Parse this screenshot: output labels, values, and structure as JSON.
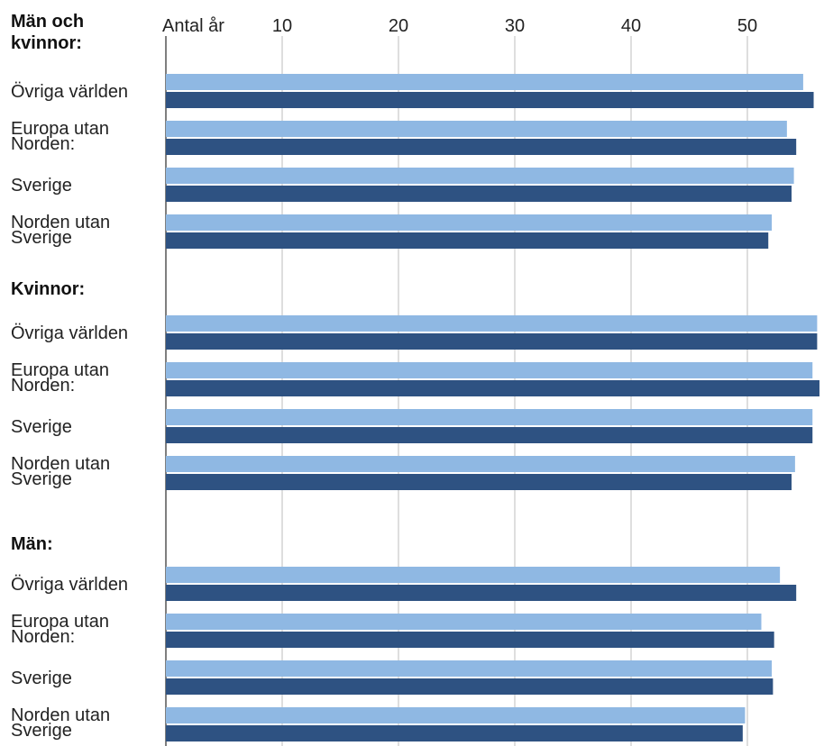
{
  "chart_data": {
    "type": "bar",
    "orientation": "horizontal",
    "unit_label": "Antal år",
    "xlim": [
      0,
      56
    ],
    "ticks": [
      10,
      20,
      30,
      40,
      50
    ],
    "grid": true,
    "colors": {
      "light": "#8fb8e3",
      "dark": "#2e5282"
    },
    "groups": [
      {
        "title": [
          "Män och",
          "kvinnor:"
        ],
        "rows": [
          {
            "label": [
              "Övriga världen"
            ],
            "values": [
              54.8,
              55.7
            ]
          },
          {
            "label": [
              "Europa utan",
              "Norden:"
            ],
            "values": [
              53.4,
              54.2
            ]
          },
          {
            "label": [
              "Sverige"
            ],
            "values": [
              54.0,
              53.8
            ]
          },
          {
            "label": [
              "Norden utan",
              "Sverige"
            ],
            "values": [
              52.1,
              51.8
            ]
          }
        ]
      },
      {
        "title": [
          "Kvinnor:"
        ],
        "rows": [
          {
            "label": [
              "Övriga världen"
            ],
            "values": [
              56.0,
              56.0
            ]
          },
          {
            "label": [
              "Europa utan",
              "Norden:"
            ],
            "values": [
              55.6,
              56.2
            ]
          },
          {
            "label": [
              "Sverige"
            ],
            "values": [
              55.6,
              55.6
            ]
          },
          {
            "label": [
              "Norden utan",
              "Sverige"
            ],
            "values": [
              54.1,
              53.8
            ]
          }
        ]
      },
      {
        "title": [
          "Män:"
        ],
        "rows": [
          {
            "label": [
              "Övriga världen"
            ],
            "values": [
              52.8,
              54.2
            ]
          },
          {
            "label": [
              "Europa utan",
              "Norden:"
            ],
            "values": [
              51.2,
              52.3
            ]
          },
          {
            "label": [
              "Sverige"
            ],
            "values": [
              52.1,
              52.2
            ]
          },
          {
            "label": [
              "Norden utan",
              "Sverige"
            ],
            "values": [
              49.8,
              49.6
            ]
          }
        ]
      }
    ]
  }
}
